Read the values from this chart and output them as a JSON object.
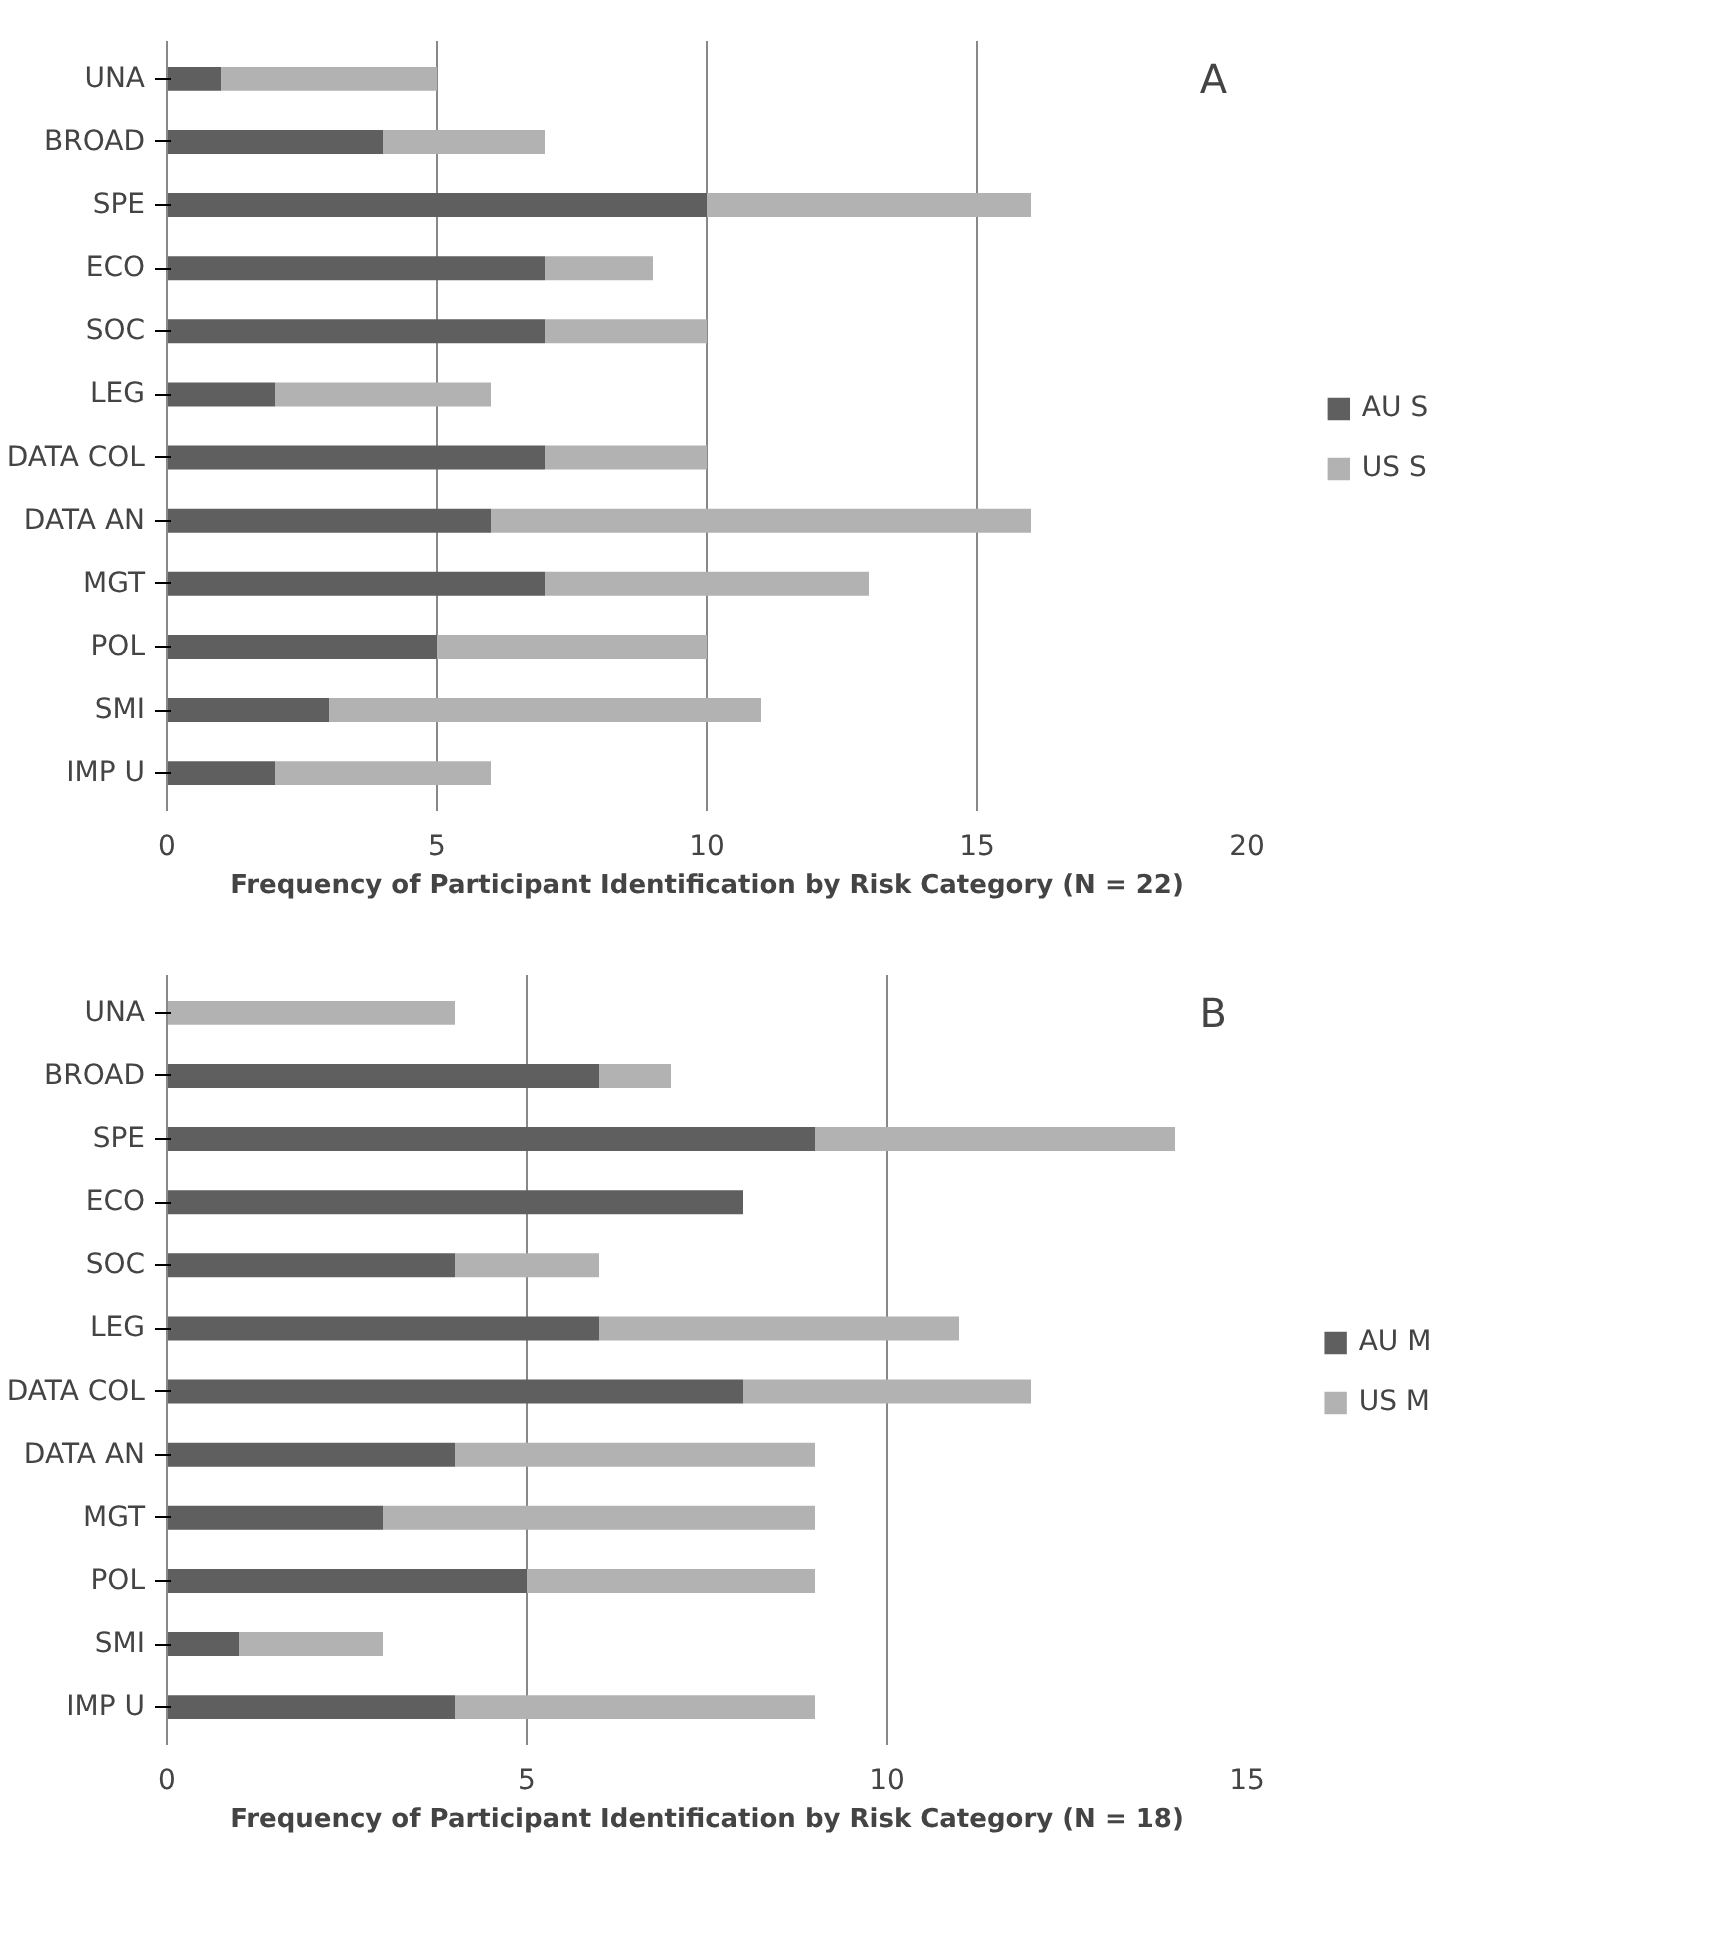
{
  "chart_data": [
    {
      "type": "bar",
      "orientation": "horizontal",
      "stacked": true,
      "xlabel": "Frequency of Participant Identification by Risk Category (N = 22)",
      "annotations": [
        "A"
      ],
      "categories": [
        "UNA",
        "BROAD",
        "SPE",
        "ECO",
        "SOC",
        "LEG",
        "DATA COL",
        "DATA AN",
        "MGT",
        "POL",
        "SMI",
        "IMP U"
      ],
      "series": [
        {
          "name": "AU S",
          "color": "#5f5f5f",
          "values": [
            1,
            4,
            10,
            7,
            7,
            2,
            7,
            6,
            7,
            5,
            3,
            2
          ]
        },
        {
          "name": "US S",
          "color": "#b2b2b2",
          "values": [
            4,
            3,
            6,
            2,
            3,
            4,
            3,
            10,
            6,
            5,
            8,
            4
          ]
        }
      ],
      "xlim": [
        0,
        20
      ],
      "xticks": [
        0,
        5,
        10,
        15,
        20
      ],
      "grid": "x",
      "legend": "right"
    },
    {
      "type": "bar",
      "orientation": "horizontal",
      "stacked": true,
      "xlabel": "Frequency of Participant Identification by Risk Category (N = 18)",
      "annotations": [
        "B"
      ],
      "categories": [
        "UNA",
        "BROAD",
        "SPE",
        "ECO",
        "SOC",
        "LEG",
        "DATA COL",
        "DATA AN",
        "MGT",
        "POL",
        "SMI",
        "IMP U"
      ],
      "series": [
        {
          "name": "AU M",
          "color": "#5f5f5f",
          "values": [
            0,
            6,
            9,
            8,
            4,
            6,
            8,
            4,
            3,
            5,
            1,
            4
          ]
        },
        {
          "name": "US M",
          "color": "#b2b2b2",
          "values": [
            4,
            1,
            5,
            0,
            2,
            5,
            4,
            5,
            6,
            4,
            2,
            5
          ]
        }
      ],
      "xlim": [
        0,
        15
      ],
      "xticks": [
        0,
        5,
        10,
        15
      ],
      "grid": "x",
      "legend": "right"
    }
  ]
}
